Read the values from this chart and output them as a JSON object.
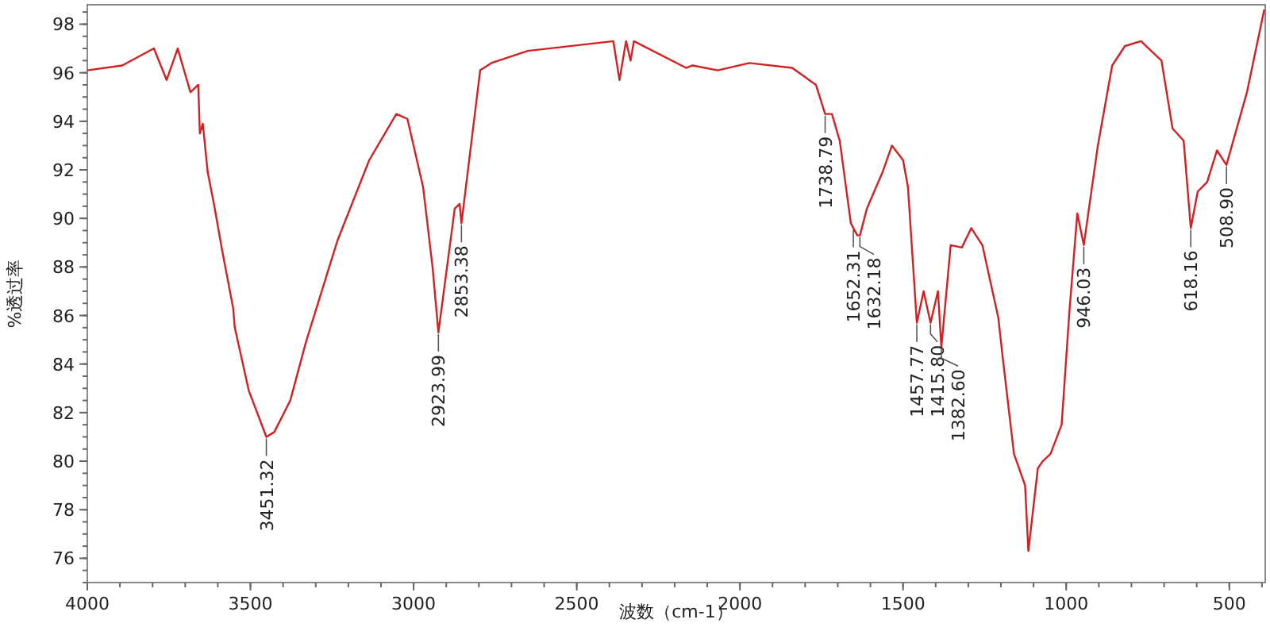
{
  "chart_data": {
    "type": "line",
    "xlabel": "波数（cm-1）",
    "ylabel": "%透过率",
    "xlim": [
      4000,
      390
    ],
    "ylim": [
      75,
      98.8
    ],
    "xticks": [
      4000,
      3500,
      3000,
      2500,
      2000,
      1500,
      1000,
      500
    ],
    "yticks": [
      76,
      78,
      80,
      82,
      84,
      86,
      88,
      90,
      92,
      94,
      96,
      98
    ],
    "series": [
      {
        "color": "#d42020",
        "x": [
          4000,
          3893,
          3796,
          3757,
          3723,
          3684,
          3660,
          3655,
          3646,
          3631,
          3612,
          3587,
          3553,
          3548,
          3505,
          3451.32,
          3427,
          3378,
          3330,
          3233,
          3136,
          3053,
          3019,
          2971,
          2942,
          2923.99,
          2874,
          2859,
          2853.38,
          2796,
          2762,
          2650,
          2388,
          2369,
          2349,
          2335,
          2325,
          2165,
          2145,
          2068,
          1971,
          1840,
          1767,
          1738.79,
          1718,
          1694,
          1660,
          1652.31,
          1640,
          1632.18,
          1611,
          1563,
          1534,
          1500,
          1485,
          1457.77,
          1437,
          1415.8,
          1393,
          1382.6,
          1354,
          1320,
          1291,
          1257,
          1208,
          1194,
          1160,
          1126,
          1116,
          1087,
          1072,
          1048,
          1014,
          990,
          966,
          946.03,
          903,
          859,
          820,
          771,
          708,
          674,
          640,
          618.16,
          597,
          568,
          538,
          508.9,
          446,
          393
        ],
        "values": [
          96.1,
          96.3,
          97.0,
          95.7,
          97.0,
          95.2,
          95.5,
          93.5,
          93.9,
          91.9,
          90.6,
          88.7,
          86.3,
          85.5,
          82.9,
          81.0,
          81.2,
          82.5,
          84.9,
          89.1,
          92.4,
          94.3,
          94.1,
          91.3,
          88.0,
          85.3,
          90.4,
          90.6,
          89.8,
          96.1,
          96.4,
          96.9,
          97.3,
          95.7,
          97.3,
          96.5,
          97.3,
          96.2,
          96.3,
          96.1,
          96.4,
          96.2,
          95.5,
          94.3,
          94.3,
          93.2,
          89.8,
          89.6,
          89.3,
          89.3,
          90.4,
          91.9,
          93.0,
          92.4,
          91.3,
          85.7,
          87.0,
          85.7,
          87.0,
          84.7,
          88.9,
          88.8,
          89.6,
          88.9,
          85.9,
          84.2,
          80.3,
          79.0,
          76.3,
          79.7,
          80.0,
          80.3,
          81.5,
          86.2,
          90.2,
          88.9,
          93.0,
          96.3,
          97.1,
          97.3,
          96.5,
          93.7,
          93.2,
          89.6,
          91.1,
          91.5,
          92.8,
          92.2,
          95.2,
          98.6
        ]
      }
    ],
    "annotations": [
      {
        "text": "3451.32",
        "x": 3451.32,
        "y": 81.0
      },
      {
        "text": "2923.99",
        "x": 2923.99,
        "y": 85.3
      },
      {
        "text": "2853.38",
        "x": 2853.38,
        "y": 89.8
      },
      {
        "text": "1738.79",
        "x": 1738.79,
        "y": 94.3
      },
      {
        "text": "1652.31",
        "x": 1652.31,
        "y": 89.6
      },
      {
        "text": "1632.18",
        "x": 1632.18,
        "y": 89.3
      },
      {
        "text": "1457.77",
        "x": 1457.77,
        "y": 85.7
      },
      {
        "text": "1415.80",
        "x": 1415.8,
        "y": 85.7
      },
      {
        "text": "1382.60",
        "x": 1382.6,
        "y": 84.7
      },
      {
        "text": "946.03",
        "x": 946.03,
        "y": 88.9
      },
      {
        "text": "618.16",
        "x": 618.16,
        "y": 89.6
      },
      {
        "text": "508.90",
        "x": 508.9,
        "y": 92.2
      }
    ]
  }
}
